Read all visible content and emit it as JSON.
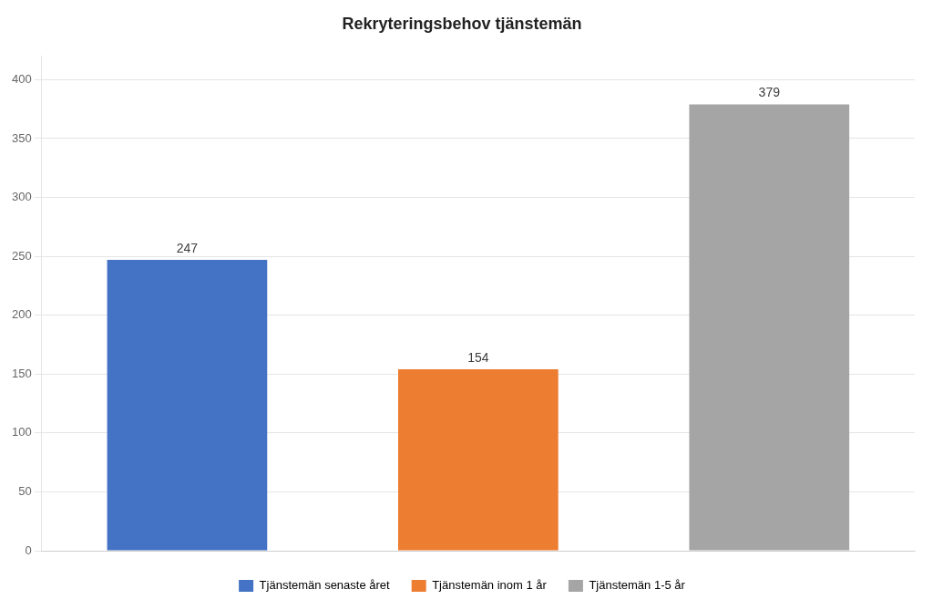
{
  "chart_data": {
    "type": "bar",
    "title": "Rekryteringsbehov tjänstemän",
    "categories": [
      "Tjänstemän senaste året",
      "Tjänstemän inom 1 år",
      "Tjänstemän 1-5 år"
    ],
    "values": [
      247,
      154,
      379
    ],
    "colors": [
      "#4472C4",
      "#ED7D31",
      "#A5A5A5"
    ],
    "ylim": [
      0,
      420
    ],
    "yticks": [
      0,
      50,
      100,
      150,
      200,
      250,
      300,
      350,
      400
    ],
    "grid": true,
    "legend": "bottom",
    "data_labels": true,
    "tick_labels": "y"
  }
}
